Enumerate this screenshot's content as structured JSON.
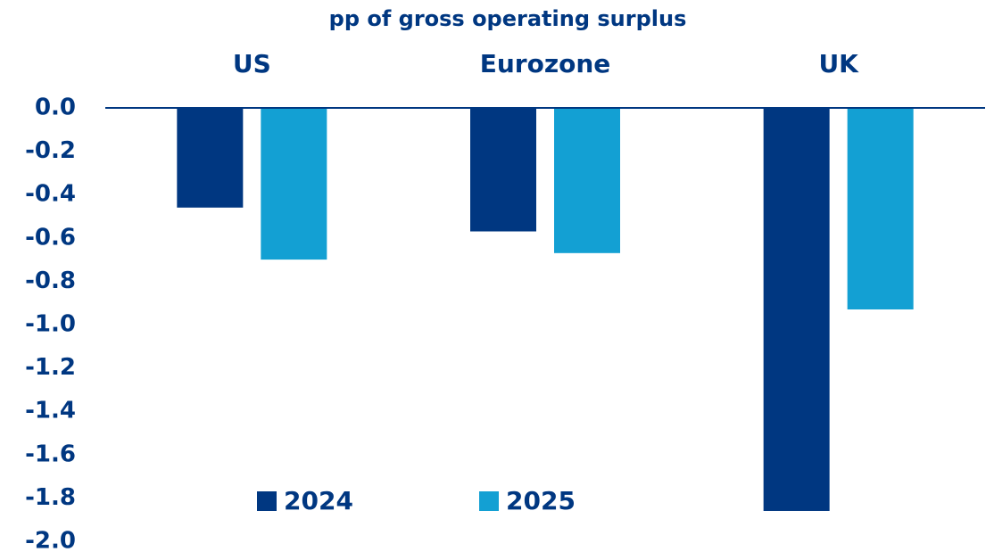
{
  "chart_data": {
    "type": "bar",
    "title": "pp of gross operating surplus",
    "categories": [
      "US",
      "Eurozone",
      "UK"
    ],
    "series": [
      {
        "name": "2024",
        "color": "#003781",
        "values": [
          -0.46,
          -0.57,
          -1.86
        ]
      },
      {
        "name": "2025",
        "color": "#13a0d3",
        "values": [
          -0.7,
          -0.67,
          -0.93
        ]
      }
    ],
    "ylim": [
      -2.0,
      0.0
    ],
    "yticks": [
      {
        "value": 0,
        "label": "0.0"
      },
      -0.2,
      -0.4,
      -0.6,
      -0.8,
      {
        "value": -1,
        "label": "-1.0"
      },
      -1.2,
      -1.4,
      -1.6,
      -1.8,
      {
        "value": -2,
        "label": "-2.0"
      }
    ]
  }
}
